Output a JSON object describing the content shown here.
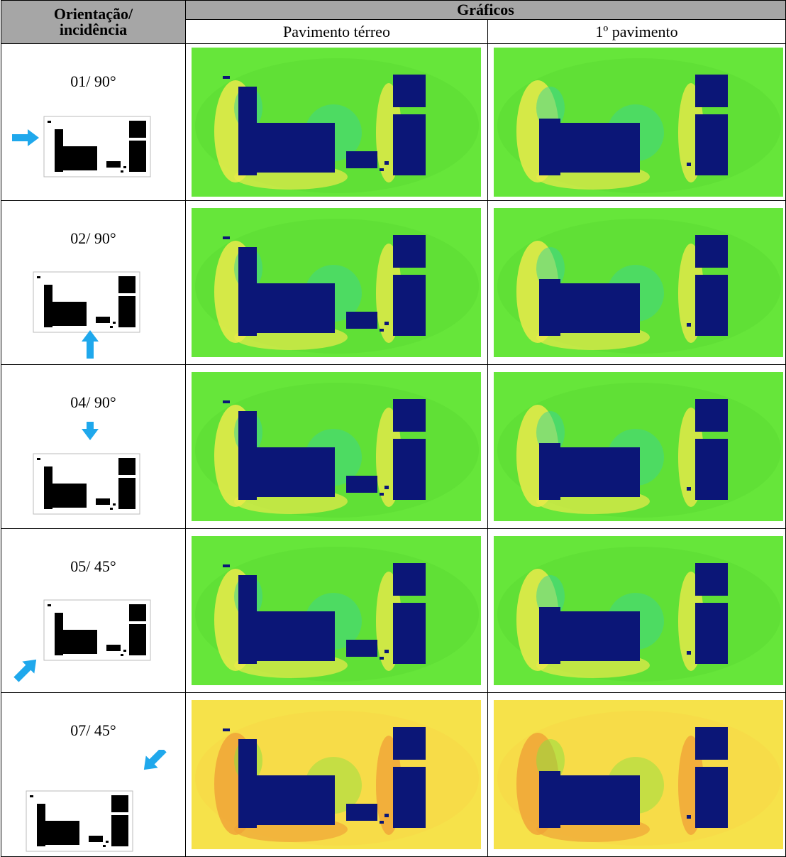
{
  "header": {
    "orientation": "Orientação/ incidência",
    "graphs": "Gráficos",
    "ground_floor": "Pavimento térreo",
    "first_floor": "1º pavimento"
  },
  "rows": [
    "01/ 90°",
    "02/ 90°",
    "04/ 90°",
    "05/ 45°",
    "07/ 45°"
  ]
}
